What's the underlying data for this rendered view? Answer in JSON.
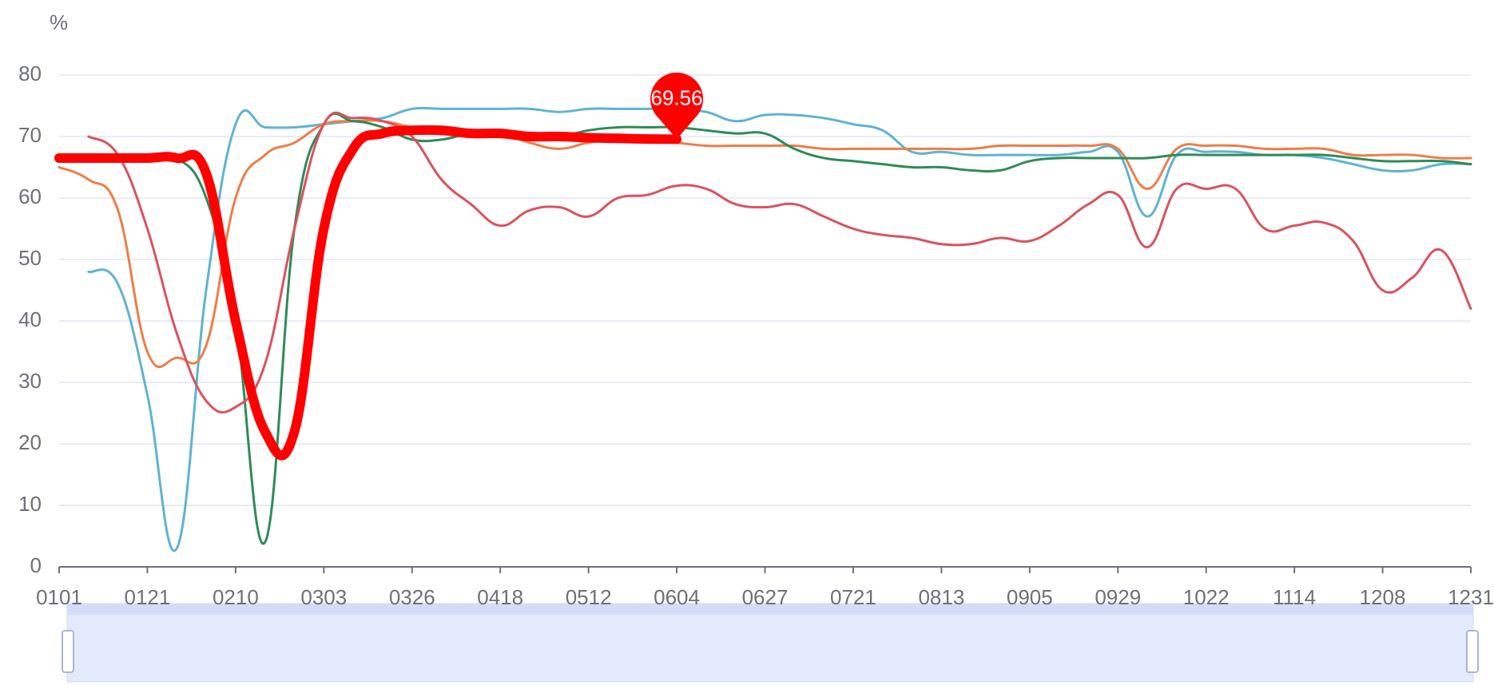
{
  "chart_data": {
    "type": "line",
    "y_axis_label": "%",
    "categories": [
      "0101",
      null,
      null,
      "0121",
      null,
      null,
      "0210",
      null,
      null,
      "0303",
      null,
      null,
      "0326",
      null,
      null,
      "0418",
      null,
      null,
      "0512",
      null,
      null,
      "0604",
      null,
      null,
      "0627",
      null,
      null,
      "0721",
      null,
      null,
      "0813",
      null,
      null,
      "0905",
      null,
      null,
      "0929",
      null,
      null,
      "1022",
      null,
      null,
      "1114",
      null,
      null,
      "1208",
      null,
      null,
      "1231"
    ],
    "ylim": [
      0,
      80
    ],
    "yticks": [
      0,
      10,
      20,
      30,
      40,
      50,
      60,
      70,
      80
    ],
    "grid": true,
    "series": [
      {
        "color": "#5fb3d0",
        "width": 3,
        "values": [
          null,
          48,
          46,
          28,
          3,
          45,
          72,
          71.5,
          71.5,
          72,
          72.5,
          73,
          74.5,
          74.5,
          74.5,
          74.5,
          74.5,
          74,
          74.5,
          74.5,
          74.5,
          74.5,
          74,
          72.5,
          73.5,
          73.5,
          73,
          72,
          71,
          67.5,
          67.5,
          67,
          67,
          67,
          67,
          67.5,
          67.5,
          57,
          67,
          67.5,
          67.5,
          67,
          67,
          66.5,
          65.5,
          64.5,
          64.5,
          65.5,
          65.5
        ]
      },
      {
        "color": "#ee7d48",
        "width": 3,
        "values": [
          65,
          63,
          58,
          35,
          34,
          36,
          60,
          67,
          69,
          72,
          72.5,
          72.5,
          71.5,
          71,
          71,
          70.5,
          69,
          68,
          69,
          69.5,
          69.5,
          69,
          68.5,
          68.5,
          68.5,
          68.5,
          68,
          68,
          68,
          68,
          68,
          68,
          68.5,
          68.5,
          68.5,
          68.5,
          68,
          61.5,
          68,
          68.5,
          68.5,
          68,
          68,
          68,
          67,
          67,
          67,
          66.5,
          66.5
        ]
      },
      {
        "color": "#2e8b57",
        "width": 3,
        "values": [
          67,
          67,
          67,
          67,
          66.5,
          60,
          40,
          4,
          55,
          72,
          72.5,
          71.5,
          69.5,
          69.5,
          70.5,
          70.5,
          70,
          70,
          71,
          71.5,
          71.5,
          71.5,
          71,
          70.5,
          70.5,
          68,
          66.5,
          66,
          65.5,
          65,
          65,
          64.5,
          64.5,
          66,
          66.5,
          66.5,
          66.5,
          66.5,
          67,
          67,
          67,
          67,
          67,
          67,
          66.5,
          66,
          66,
          66,
          65.5
        ]
      },
      {
        "color": "#d9535f",
        "width": 3,
        "values": [
          null,
          70,
          67,
          55,
          38,
          27,
          26,
          33,
          55,
          72,
          73,
          72.5,
          70,
          63,
          59,
          55.5,
          58,
          58.5,
          57,
          60,
          60.5,
          62,
          61.5,
          59,
          58.5,
          59,
          57,
          55,
          54,
          53.5,
          52.5,
          52.5,
          53.5,
          53,
          55.5,
          59,
          60.5,
          52,
          61.5,
          61.5,
          61.5,
          55,
          55.5,
          56,
          53,
          45,
          47,
          51.5,
          42
        ]
      },
      {
        "color": "#ff0000",
        "width": 12,
        "values": [
          66.5,
          66.5,
          66.5,
          66.5,
          66.5,
          64,
          40,
          22,
          22,
          55,
          68,
          70.5,
          71,
          71,
          70.5,
          70.5,
          70,
          70,
          69.8,
          69.7,
          69.6,
          69.56,
          null,
          null,
          null,
          null,
          null,
          null,
          null,
          null,
          null,
          null,
          null,
          null,
          null,
          null,
          null,
          null,
          null,
          null,
          null,
          null,
          null,
          null,
          null,
          null,
          null,
          null,
          null
        ],
        "mark_point_index": 21
      }
    ]
  }
}
